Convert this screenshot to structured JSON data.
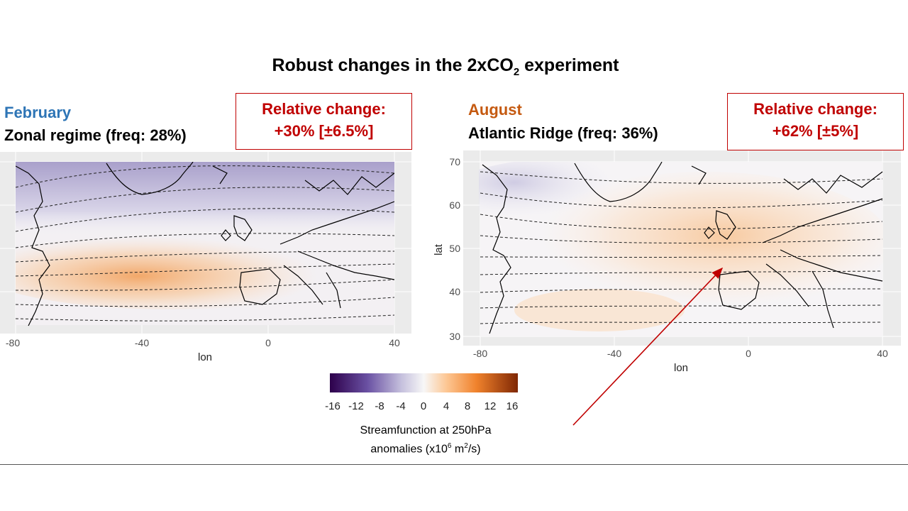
{
  "title": {
    "prefix": "Robust changes in the 2xCO",
    "sub": "2",
    "suffix": " experiment"
  },
  "left_panel": {
    "month": "February",
    "month_color": "#2e75b6",
    "regime": "Zonal regime (freq: 28%)",
    "relative_change_label": "Relative change:",
    "relative_change_value": "+30% [±6.5%]",
    "x_ticks": [
      "-80",
      "-40",
      "0",
      "40"
    ],
    "x_label": "lon"
  },
  "right_panel": {
    "month": "August",
    "month_color": "#c55a11",
    "regime": "Atlantic Ridge (freq: 36%)",
    "relative_change_label": "Relative change:",
    "relative_change_value": "+62% [±5%]",
    "x_ticks": [
      "-80",
      "-40",
      "0",
      "40"
    ],
    "y_ticks": [
      "70",
      "60",
      "50",
      "40",
      "30"
    ],
    "x_label": "lon",
    "y_label": "lat"
  },
  "colorbar": {
    "ticks": [
      "-16",
      "-12",
      "-8",
      "-4",
      "0",
      "4",
      "8",
      "12",
      "16"
    ],
    "caption_line1": "Streamfunction at 250hPa",
    "caption_line2_prefix": "anomalies (x10",
    "caption_sup1": "6",
    "caption_mid": " m",
    "caption_sup2": "2",
    "caption_suffix": "/s)"
  },
  "colors": {
    "accent_red": "#c00000",
    "negative": "#54278f",
    "positive": "#d95f0e"
  }
}
